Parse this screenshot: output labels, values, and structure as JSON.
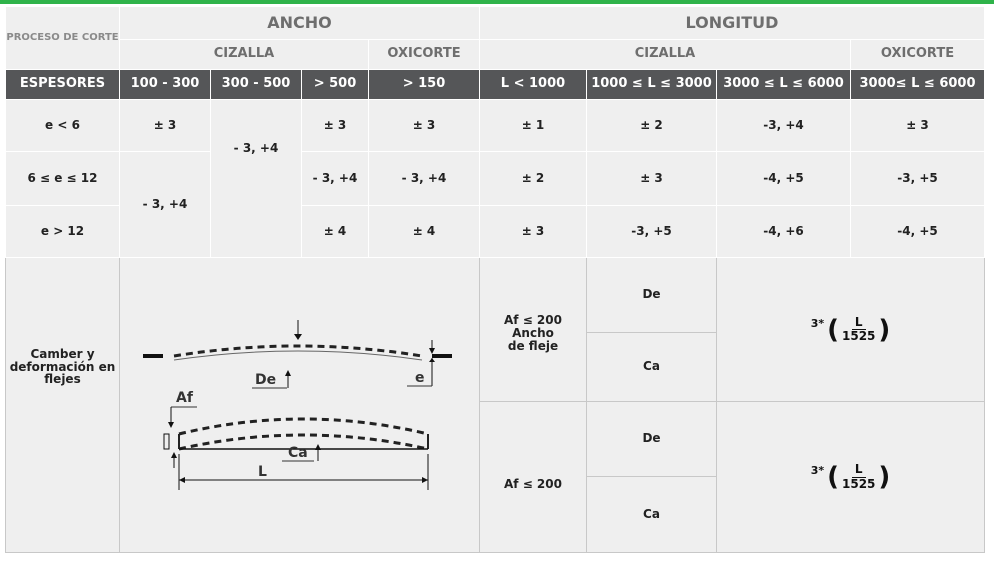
{
  "header": {
    "proceso": "PROCESO DE CORTE",
    "ancho": "ANCHO",
    "longitud": "LONGITUD",
    "cizalla": "CIZALLA",
    "oxicorte": "OXICORTE"
  },
  "columns": {
    "espesores": "ESPESORES",
    "ancho": [
      "100 - 300",
      "300 - 500",
      "> 500",
      "> 150"
    ],
    "longitud": [
      "L < 1000",
      "1000 ≤ L ≤ 3000",
      "3000 ≤ L ≤ 6000",
      "3000≤ L ≤ 6000"
    ]
  },
  "rows": [
    {
      "label": "e < 6",
      "c100": "± 3",
      "c500": "± 3",
      "c150": "± 3",
      "l1": "± 1",
      "l2": "± 2",
      "l3": "-3, +4",
      "l4": "± 3"
    },
    {
      "label": "6 ≤ e ≤ 12",
      "c300": "- 3, +4",
      "c500": "- 3, +4",
      "c150": "- 3, +4",
      "l1": "± 2",
      "l2": "± 3",
      "l3": "-4, +5",
      "l4": "-3, +5"
    },
    {
      "label": "e > 12",
      "c500": "± 4",
      "c150": "± 4",
      "l1": "± 3",
      "l2": "-3, +5",
      "l3": "-4, +6",
      "l4": "-4, +5"
    }
  ],
  "merged": {
    "c100_rows_2_3": "- 3, +4"
  },
  "camber": {
    "label": "Camber y deformación en flejes",
    "af1": "Af ≤ 200 Ancho de fleje",
    "af2": "Af ≤ 200",
    "de": "De",
    "ca": "Ca",
    "formula": {
      "coef": "3",
      "star": "*",
      "num": "L",
      "den": "1525"
    }
  },
  "diagram": {
    "de": "De",
    "e": "e",
    "af": "Af",
    "ca": "Ca",
    "l": "L"
  },
  "colors": {
    "accent": "#2fb34a",
    "header_dark": "#555658",
    "cell_bg": "#efefef"
  }
}
